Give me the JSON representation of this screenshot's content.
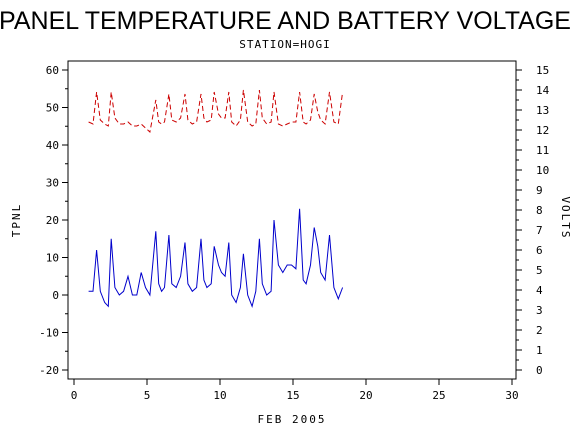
{
  "chart_data": {
    "type": "line",
    "title": "PANEL TEMPERATURE AND BATTERY VOLTAGE",
    "subtitle": "STATION=HOGI",
    "xlabel": "FEB 2005",
    "ylabel_left": "TPNL",
    "ylabel_right": "VOLTS",
    "xlim": [
      0,
      30
    ],
    "ylim_left": [
      -22,
      62
    ],
    "ylim_right": [
      0,
      15
    ],
    "x_ticks": [
      0,
      5,
      10,
      15,
      20,
      25,
      30
    ],
    "y_ticks_left": [
      -20,
      -10,
      0,
      10,
      20,
      30,
      40,
      50,
      60
    ],
    "y_ticks_right": [
      0,
      1,
      2,
      3,
      4,
      5,
      6,
      7,
      8,
      9,
      10,
      11,
      12,
      13,
      14,
      15
    ],
    "grid": false,
    "series": [
      {
        "axis": "left",
        "color": "#0000cc",
        "style": "solid",
        "x": [
          1.0,
          1.3,
          1.55,
          1.8,
          2.1,
          2.35,
          2.55,
          2.8,
          3.1,
          3.4,
          3.7,
          4.0,
          4.3,
          4.6,
          4.9,
          5.2,
          5.6,
          5.8,
          6.0,
          6.2,
          6.5,
          6.7,
          7.0,
          7.3,
          7.6,
          7.8,
          8.1,
          8.4,
          8.7,
          8.9,
          9.1,
          9.4,
          9.6,
          9.9,
          10.1,
          10.35,
          10.6,
          10.8,
          11.1,
          11.4,
          11.6,
          11.9,
          12.2,
          12.45,
          12.7,
          12.9,
          13.2,
          13.5,
          13.7,
          14.0,
          14.3,
          14.6,
          14.9,
          15.2,
          15.45,
          15.7,
          15.9,
          16.2,
          16.45,
          16.7,
          16.9,
          17.2,
          17.5,
          17.8,
          18.1,
          18.4
        ],
        "y": [
          1,
          1,
          12,
          1,
          -2,
          -3,
          15,
          2,
          0,
          1,
          5,
          0,
          0,
          6,
          2,
          0,
          17,
          3,
          1,
          2,
          16,
          3,
          2,
          5,
          14,
          3,
          1,
          2,
          15,
          4,
          2,
          3,
          13,
          8,
          6,
          5,
          14,
          0,
          -2,
          2,
          11,
          0,
          -3,
          1,
          15,
          3,
          0,
          1,
          20,
          8,
          6,
          8,
          8,
          7,
          23,
          4,
          3,
          8,
          18,
          13,
          6,
          4,
          16,
          2,
          -1,
          2
        ]
      },
      {
        "axis": "right",
        "color": "#cc0000",
        "style": "dashed",
        "x": [
          1.0,
          1.3,
          1.55,
          1.8,
          2.1,
          2.35,
          2.55,
          2.8,
          3.1,
          3.4,
          3.7,
          4.0,
          4.3,
          4.6,
          4.9,
          5.2,
          5.6,
          5.8,
          6.0,
          6.2,
          6.5,
          6.7,
          7.0,
          7.3,
          7.6,
          7.8,
          8.1,
          8.4,
          8.7,
          8.9,
          9.1,
          9.4,
          9.6,
          9.9,
          10.1,
          10.35,
          10.6,
          10.8,
          11.1,
          11.4,
          11.6,
          11.9,
          12.2,
          12.45,
          12.7,
          12.9,
          13.2,
          13.5,
          13.7,
          14.0,
          14.3,
          14.6,
          14.9,
          15.2,
          15.45,
          15.7,
          15.9,
          16.2,
          16.45,
          16.7,
          16.9,
          17.2,
          17.5,
          17.8,
          18.1,
          18.4
        ],
        "y": [
          12.4,
          12.3,
          13.9,
          12.5,
          12.3,
          12.2,
          13.9,
          12.6,
          12.3,
          12.3,
          12.4,
          12.2,
          12.2,
          12.3,
          12.1,
          11.9,
          13.5,
          12.4,
          12.3,
          12.4,
          13.8,
          12.5,
          12.4,
          12.6,
          13.8,
          12.5,
          12.3,
          12.4,
          13.8,
          12.6,
          12.4,
          12.5,
          13.9,
          12.8,
          12.6,
          12.6,
          13.9,
          12.4,
          12.2,
          12.5,
          14.0,
          12.4,
          12.2,
          12.3,
          14.0,
          12.6,
          12.3,
          12.4,
          13.9,
          12.3,
          12.2,
          12.3,
          12.4,
          12.4,
          13.9,
          12.4,
          12.3,
          12.5,
          13.8,
          12.9,
          12.5,
          12.3,
          13.9,
          12.4,
          12.3,
          13.9
        ]
      }
    ]
  }
}
